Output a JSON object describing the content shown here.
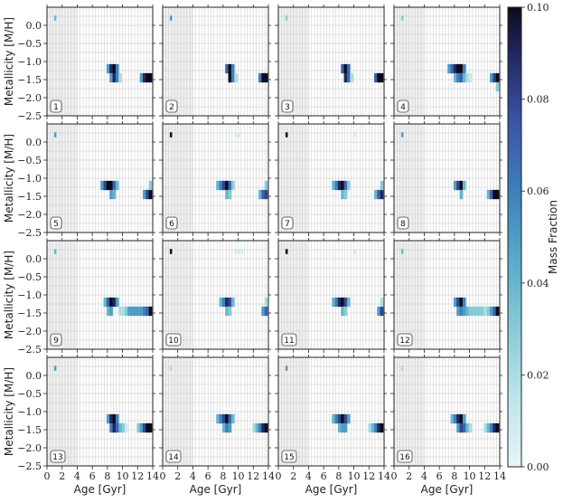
{
  "chart_data": {
    "type": "heatmap",
    "layout": {
      "rows": 4,
      "cols": 4
    },
    "xlabel": "Age [Gyr]",
    "ylabel": "Metallicity [M/H]",
    "xlim": [
      0,
      14
    ],
    "ylim": [
      -2.5,
      0.5
    ],
    "x_ticks": [
      0,
      2,
      4,
      6,
      8,
      10,
      12,
      14
    ],
    "y_ticks": [
      -2.5,
      -2.0,
      -1.5,
      -1.0,
      -0.5,
      0.0
    ],
    "y_tick_labels": [
      "−2.5",
      "−2.0",
      "−1.5",
      "−1.0",
      "−0.5",
      "0.0"
    ],
    "grid": true,
    "excluded_region_x": [
      0,
      4
    ],
    "colorbar": {
      "label": "Mass Fraction",
      "range": [
        0.0,
        0.1
      ],
      "ticks": [
        0.0,
        0.02,
        0.04,
        0.06,
        0.08,
        0.1
      ],
      "tick_labels": [
        "0.00",
        "0.02",
        "0.04",
        "0.06",
        "0.08",
        "0.10"
      ]
    },
    "panels": [
      {
        "label": "1",
        "cells": [
          [
            1.1,
            0.2,
            0.04
          ],
          [
            8.1,
            -1.2,
            0.05
          ],
          [
            8.5,
            -1.2,
            0.09
          ],
          [
            8.9,
            -1.2,
            0.1
          ],
          [
            9.3,
            -1.2,
            0.06
          ],
          [
            8.5,
            -1.45,
            0.05
          ],
          [
            8.9,
            -1.45,
            0.09
          ],
          [
            9.3,
            -1.45,
            0.06
          ],
          [
            9.7,
            -1.45,
            0.02
          ],
          [
            12.5,
            -1.45,
            0.05
          ],
          [
            12.9,
            -1.45,
            0.09
          ],
          [
            13.3,
            -1.45,
            0.1
          ],
          [
            13.7,
            -1.45,
            0.1
          ]
        ]
      },
      {
        "label": "2",
        "cells": [
          [
            1.1,
            0.2,
            0.05
          ],
          [
            8.5,
            -1.2,
            0.07
          ],
          [
            8.9,
            -1.2,
            0.1
          ],
          [
            9.3,
            -1.2,
            0.06
          ],
          [
            8.9,
            -1.45,
            0.1
          ],
          [
            9.3,
            -1.45,
            0.06
          ],
          [
            9.7,
            -1.45,
            0.02
          ],
          [
            12.9,
            -1.45,
            0.06
          ],
          [
            13.3,
            -1.45,
            0.1
          ],
          [
            13.7,
            -1.45,
            0.1
          ]
        ]
      },
      {
        "label": "3",
        "cells": [
          [
            1.1,
            0.2,
            0.03
          ],
          [
            8.5,
            -1.2,
            0.07
          ],
          [
            8.9,
            -1.2,
            0.1
          ],
          [
            9.3,
            -1.2,
            0.07
          ],
          [
            8.9,
            -1.45,
            0.09
          ],
          [
            9.3,
            -1.45,
            0.07
          ],
          [
            9.7,
            -1.45,
            0.02
          ],
          [
            12.9,
            -1.45,
            0.07
          ],
          [
            13.3,
            -1.45,
            0.1
          ],
          [
            13.7,
            -1.45,
            0.1
          ]
        ]
      },
      {
        "label": "4",
        "cells": [
          [
            1.1,
            0.2,
            0.03
          ],
          [
            7.3,
            -1.2,
            0.05
          ],
          [
            7.7,
            -1.2,
            0.07
          ],
          [
            8.1,
            -1.2,
            0.09
          ],
          [
            8.5,
            -1.2,
            0.1
          ],
          [
            8.9,
            -1.2,
            0.1
          ],
          [
            9.3,
            -1.2,
            0.06
          ],
          [
            8.1,
            -1.45,
            0.04
          ],
          [
            8.5,
            -1.45,
            0.06
          ],
          [
            8.9,
            -1.45,
            0.07
          ],
          [
            9.3,
            -1.45,
            0.04
          ],
          [
            9.7,
            -1.45,
            0.02
          ],
          [
            10.1,
            -1.45,
            0.01
          ],
          [
            12.9,
            -1.45,
            0.05
          ],
          [
            13.3,
            -1.45,
            0.08
          ],
          [
            13.7,
            -1.45,
            0.1
          ],
          [
            13.7,
            -1.7,
            0.03
          ]
        ]
      },
      {
        "label": "5",
        "cells": [
          [
            1.1,
            0.2,
            0.05
          ],
          [
            7.3,
            -1.2,
            0.05
          ],
          [
            7.7,
            -1.2,
            0.08
          ],
          [
            8.1,
            -1.2,
            0.1
          ],
          [
            8.5,
            -1.2,
            0.1
          ],
          [
            8.9,
            -1.2,
            0.07
          ],
          [
            9.3,
            -1.2,
            0.04
          ],
          [
            8.5,
            -1.45,
            0.05
          ],
          [
            8.9,
            -1.45,
            0.04
          ],
          [
            12.9,
            -1.45,
            0.05
          ],
          [
            13.3,
            -1.45,
            0.08
          ],
          [
            13.7,
            -1.45,
            0.1
          ],
          [
            13.7,
            -1.2,
            0.03
          ]
        ]
      },
      {
        "label": "6",
        "cells": [
          [
            1.1,
            0.2,
            0.1
          ],
          [
            9.7,
            0.2,
            0.01
          ],
          [
            10.1,
            0.2,
            0.01
          ],
          [
            7.3,
            -1.2,
            0.04
          ],
          [
            7.7,
            -1.2,
            0.06
          ],
          [
            8.1,
            -1.2,
            0.08
          ],
          [
            8.5,
            -1.2,
            0.1
          ],
          [
            8.9,
            -1.2,
            0.07
          ],
          [
            9.3,
            -1.2,
            0.03
          ],
          [
            8.5,
            -1.45,
            0.04
          ],
          [
            8.9,
            -1.45,
            0.03
          ],
          [
            12.9,
            -1.45,
            0.04
          ],
          [
            13.3,
            -1.45,
            0.07
          ],
          [
            13.7,
            -1.45,
            0.08
          ],
          [
            13.7,
            -1.2,
            0.03
          ]
        ]
      },
      {
        "label": "7",
        "cells": [
          [
            1.1,
            0.2,
            0.1
          ],
          [
            10.1,
            0.2,
            0.01
          ],
          [
            7.3,
            -1.2,
            0.04
          ],
          [
            7.7,
            -1.2,
            0.06
          ],
          [
            8.1,
            -1.2,
            0.09
          ],
          [
            8.5,
            -1.2,
            0.1
          ],
          [
            8.9,
            -1.2,
            0.07
          ],
          [
            9.3,
            -1.2,
            0.03
          ],
          [
            8.5,
            -1.45,
            0.04
          ],
          [
            8.9,
            -1.45,
            0.03
          ],
          [
            12.9,
            -1.45,
            0.04
          ],
          [
            13.3,
            -1.45,
            0.07
          ],
          [
            13.7,
            -1.45,
            0.09
          ],
          [
            13.7,
            -1.2,
            0.03
          ]
        ]
      },
      {
        "label": "8",
        "cells": [
          [
            1.1,
            0.2,
            0.05
          ],
          [
            8.1,
            -1.2,
            0.05
          ],
          [
            8.5,
            -1.2,
            0.08
          ],
          [
            8.9,
            -1.2,
            0.1
          ],
          [
            9.3,
            -1.2,
            0.04
          ],
          [
            8.9,
            -1.45,
            0.04
          ],
          [
            12.5,
            -1.45,
            0.04
          ],
          [
            12.9,
            -1.45,
            0.07
          ],
          [
            13.3,
            -1.45,
            0.1
          ],
          [
            13.7,
            -1.45,
            0.1
          ]
        ]
      },
      {
        "label": "9",
        "cells": [
          [
            1.1,
            0.2,
            0.04
          ],
          [
            7.7,
            -1.2,
            0.04
          ],
          [
            8.1,
            -1.2,
            0.07
          ],
          [
            8.5,
            -1.2,
            0.1
          ],
          [
            8.9,
            -1.2,
            0.09
          ],
          [
            9.3,
            -1.2,
            0.05
          ],
          [
            8.1,
            -1.45,
            0.04
          ],
          [
            8.5,
            -1.45,
            0.05
          ],
          [
            9.7,
            -1.45,
            0.02
          ],
          [
            10.1,
            -1.45,
            0.02
          ],
          [
            10.5,
            -1.45,
            0.03
          ],
          [
            10.9,
            -1.45,
            0.05
          ],
          [
            11.3,
            -1.45,
            0.05
          ],
          [
            11.7,
            -1.45,
            0.05
          ],
          [
            12.1,
            -1.45,
            0.05
          ],
          [
            12.5,
            -1.45,
            0.05
          ],
          [
            12.9,
            -1.45,
            0.06
          ],
          [
            13.3,
            -1.45,
            0.07
          ],
          [
            13.7,
            -1.45,
            0.1
          ]
        ]
      },
      {
        "label": "10",
        "cells": [
          [
            1.1,
            0.2,
            0.1
          ],
          [
            9.7,
            0.2,
            0.01
          ],
          [
            10.1,
            0.2,
            0.01
          ],
          [
            10.5,
            0.2,
            0.01
          ],
          [
            7.7,
            -1.2,
            0.04
          ],
          [
            8.1,
            -1.2,
            0.06
          ],
          [
            8.5,
            -1.2,
            0.09
          ],
          [
            8.9,
            -1.2,
            0.08
          ],
          [
            9.3,
            -1.2,
            0.04
          ],
          [
            8.5,
            -1.45,
            0.04
          ],
          [
            8.9,
            -1.45,
            0.03
          ],
          [
            13.3,
            -1.45,
            0.05
          ],
          [
            13.7,
            -1.45,
            0.07
          ],
          [
            13.7,
            -1.2,
            0.02
          ]
        ]
      },
      {
        "label": "11",
        "cells": [
          [
            1.1,
            0.2,
            0.1
          ],
          [
            10.1,
            0.2,
            0.01
          ],
          [
            7.3,
            -1.2,
            0.04
          ],
          [
            7.7,
            -1.2,
            0.06
          ],
          [
            8.1,
            -1.2,
            0.09
          ],
          [
            8.5,
            -1.2,
            0.1
          ],
          [
            8.9,
            -1.2,
            0.08
          ],
          [
            9.3,
            -1.2,
            0.04
          ],
          [
            8.5,
            -1.45,
            0.04
          ],
          [
            8.9,
            -1.45,
            0.03
          ],
          [
            13.3,
            -1.45,
            0.05
          ],
          [
            13.7,
            -1.45,
            0.08
          ],
          [
            13.7,
            -1.2,
            0.02
          ]
        ]
      },
      {
        "label": "12",
        "cells": [
          [
            1.1,
            0.2,
            0.04
          ],
          [
            8.1,
            -1.2,
            0.05
          ],
          [
            8.5,
            -1.2,
            0.08
          ],
          [
            8.9,
            -1.2,
            0.1
          ],
          [
            9.3,
            -1.2,
            0.06
          ],
          [
            8.5,
            -1.45,
            0.05
          ],
          [
            8.9,
            -1.45,
            0.06
          ],
          [
            9.3,
            -1.45,
            0.05
          ],
          [
            9.7,
            -1.45,
            0.04
          ],
          [
            10.1,
            -1.45,
            0.03
          ],
          [
            10.5,
            -1.45,
            0.03
          ],
          [
            10.9,
            -1.45,
            0.03
          ],
          [
            11.3,
            -1.45,
            0.03
          ],
          [
            11.7,
            -1.45,
            0.03
          ],
          [
            12.1,
            -1.45,
            0.02
          ],
          [
            12.5,
            -1.45,
            0.03
          ],
          [
            12.9,
            -1.45,
            0.05
          ],
          [
            13.3,
            -1.45,
            0.07
          ],
          [
            13.7,
            -1.45,
            0.1
          ]
        ]
      },
      {
        "label": "13",
        "cells": [
          [
            1.1,
            0.2,
            0.05
          ],
          [
            8.1,
            -1.2,
            0.05
          ],
          [
            8.5,
            -1.2,
            0.09
          ],
          [
            8.9,
            -1.2,
            0.1
          ],
          [
            9.3,
            -1.2,
            0.06
          ],
          [
            8.5,
            -1.45,
            0.06
          ],
          [
            8.9,
            -1.45,
            0.09
          ],
          [
            9.3,
            -1.45,
            0.07
          ],
          [
            9.7,
            -1.45,
            0.04
          ],
          [
            10.1,
            -1.45,
            0.03
          ],
          [
            10.5,
            -1.45,
            0.01
          ],
          [
            12.1,
            -1.45,
            0.03
          ],
          [
            12.5,
            -1.45,
            0.05
          ],
          [
            12.9,
            -1.45,
            0.08
          ],
          [
            13.3,
            -1.45,
            0.1
          ],
          [
            13.7,
            -1.45,
            0.1
          ]
        ]
      },
      {
        "label": "14",
        "cells": [
          [
            1.1,
            0.2,
            0.02
          ],
          [
            7.3,
            -1.2,
            0.04
          ],
          [
            7.7,
            -1.2,
            0.06
          ],
          [
            8.1,
            -1.2,
            0.08
          ],
          [
            8.5,
            -1.2,
            0.1
          ],
          [
            8.9,
            -1.2,
            0.07
          ],
          [
            9.3,
            -1.2,
            0.04
          ],
          [
            8.1,
            -1.45,
            0.04
          ],
          [
            8.5,
            -1.45,
            0.06
          ],
          [
            8.9,
            -1.45,
            0.05
          ],
          [
            12.1,
            -1.45,
            0.02
          ],
          [
            12.5,
            -1.45,
            0.04
          ],
          [
            12.9,
            -1.45,
            0.06
          ],
          [
            13.3,
            -1.45,
            0.09
          ],
          [
            13.7,
            -1.45,
            0.1
          ]
        ]
      },
      {
        "label": "15",
        "cells": [
          [
            1.1,
            0.2,
            0.05
          ],
          [
            7.3,
            -1.2,
            0.04
          ],
          [
            7.7,
            -1.2,
            0.06
          ],
          [
            8.1,
            -1.2,
            0.08
          ],
          [
            8.5,
            -1.2,
            0.1
          ],
          [
            8.9,
            -1.2,
            0.08
          ],
          [
            9.3,
            -1.2,
            0.05
          ],
          [
            8.1,
            -1.45,
            0.04
          ],
          [
            8.5,
            -1.45,
            0.05
          ],
          [
            8.9,
            -1.45,
            0.05
          ],
          [
            12.1,
            -1.45,
            0.02
          ],
          [
            12.5,
            -1.45,
            0.04
          ],
          [
            12.9,
            -1.45,
            0.06
          ],
          [
            13.3,
            -1.45,
            0.09
          ],
          [
            13.7,
            -1.45,
            0.1
          ]
        ]
      },
      {
        "label": "16",
        "cells": [
          [
            1.1,
            0.2,
            0.02
          ],
          [
            7.7,
            -1.2,
            0.04
          ],
          [
            8.1,
            -1.2,
            0.06
          ],
          [
            8.5,
            -1.2,
            0.09
          ],
          [
            8.9,
            -1.2,
            0.1
          ],
          [
            9.3,
            -1.2,
            0.05
          ],
          [
            8.5,
            -1.45,
            0.05
          ],
          [
            8.9,
            -1.45,
            0.08
          ],
          [
            9.3,
            -1.45,
            0.07
          ],
          [
            9.7,
            -1.45,
            0.04
          ],
          [
            10.1,
            -1.45,
            0.02
          ],
          [
            12.1,
            -1.45,
            0.02
          ],
          [
            12.5,
            -1.45,
            0.04
          ],
          [
            12.9,
            -1.45,
            0.06
          ],
          [
            13.3,
            -1.45,
            0.09
          ],
          [
            13.7,
            -1.45,
            0.1
          ]
        ]
      }
    ]
  }
}
